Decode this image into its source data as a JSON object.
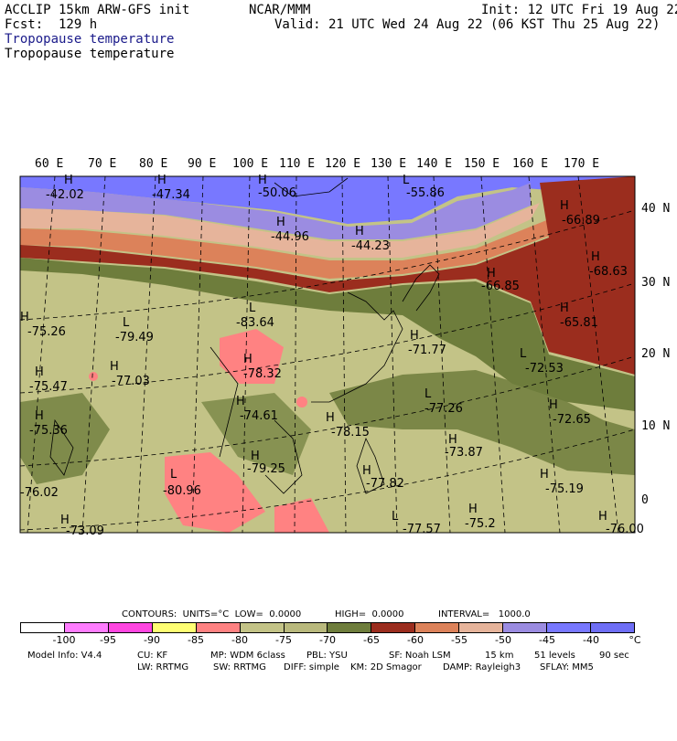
{
  "header": {
    "model": "ACCLIP 15km ARW-GFS init",
    "fcst": "Fcst:  129 h",
    "org": "NCAR/MMM",
    "init": "Init: 12 UTC Fri 19 Aug 22",
    "valid": "Valid: 21 UTC Wed 24 Aug 22 (06 KST Thu 25 Aug 22)",
    "field_blue": "Tropopause temperature",
    "field_black": "Tropopause temperature"
  },
  "lon_labels": [
    "60 E",
    "70 E",
    "80 E",
    "90 E",
    "100 E",
    "110 E",
    "120 E",
    "130 E",
    "140 E",
    "150 E",
    "160 E",
    "170 E"
  ],
  "lat_labels": [
    "40 N",
    "30 N",
    "20 N",
    "10 N",
    "0"
  ],
  "map_labels": [
    {
      "t": "H",
      "v": "-42.02"
    },
    {
      "t": "H",
      "v": "-47.34"
    },
    {
      "t": "H",
      "v": "-50.06"
    },
    {
      "t": "L",
      "v": "-55.86"
    },
    {
      "t": "H",
      "v": "-44.96"
    },
    {
      "t": "H",
      "v": "-44.23"
    },
    {
      "t": "H",
      "v": "-66.89"
    },
    {
      "t": "H",
      "v": "-68.63"
    },
    {
      "t": "H",
      "v": "-66.85"
    },
    {
      "t": "L",
      "v": "-83.64"
    },
    {
      "t": "H",
      "v": "-65.81"
    },
    {
      "t": "H",
      "v": "-75.26"
    },
    {
      "t": "L",
      "v": "-79.49"
    },
    {
      "t": "H",
      "v": "-71.77"
    },
    {
      "t": "L",
      "v": "-72.53"
    },
    {
      "t": "H",
      "v": "-78.32"
    },
    {
      "t": "H",
      "v": "-75.47"
    },
    {
      "t": "H",
      "v": "-77.03"
    },
    {
      "t": "L",
      "v": "-77.26"
    },
    {
      "t": "H",
      "v": "-74.61"
    },
    {
      "t": "H",
      "v": "-72.65"
    },
    {
      "t": "H",
      "v": "-75.36"
    },
    {
      "t": "H",
      "v": "-78.15"
    },
    {
      "t": "H",
      "v": "-73.87"
    },
    {
      "t": "H",
      "v": "-79.25"
    },
    {
      "t": "L",
      "v": "-80.96"
    },
    {
      "t": "H",
      "v": "-77.82"
    },
    {
      "t": "H",
      "v": "-75.19"
    },
    {
      "t": "H",
      "v": "-76.02"
    },
    {
      "t": "L",
      "v": "-77.57"
    },
    {
      "t": "H",
      "v": "-75.2"
    },
    {
      "t": "H",
      "v": "-76.00"
    },
    {
      "t": "H",
      "v": "-73.09"
    }
  ],
  "contours": {
    "label": "CONTOURS:  UNITS=°C  LOW=  0.0000",
    "high": "HIGH=  0.0000",
    "interval": "INTERVAL=   1000.0"
  },
  "legend": {
    "colors": [
      "#ffffff",
      "#ff7dff",
      "#ff46e1",
      "#ffff73",
      "#ff8282",
      "#c3c387",
      "#b9b97d",
      "#6e7d3c",
      "#9b2d1e",
      "#dc825a",
      "#e6b49b",
      "#9b8ce1",
      "#7878ff",
      "#6e6ef5"
    ],
    "ticks": [
      "-100",
      "-95",
      "-90",
      "-85",
      "-80",
      "-75",
      "-70",
      "-65",
      "-60",
      "-55",
      "-50",
      "-45",
      "-40",
      "°C"
    ]
  },
  "info": {
    "line1": [
      "Model Info: V4.4",
      "CU: KF",
      "MP: WDM 6class",
      "PBL: YSU",
      "SF: Noah LSM",
      "15 km",
      "51 levels",
      "90 sec"
    ],
    "line2": [
      "LW: RRTMG",
      "SW: RRTMG",
      "DIFF: simple",
      "KM: 2D Smagor",
      "DAMP: Rayleigh3",
      "SFLAY: MM5"
    ]
  }
}
